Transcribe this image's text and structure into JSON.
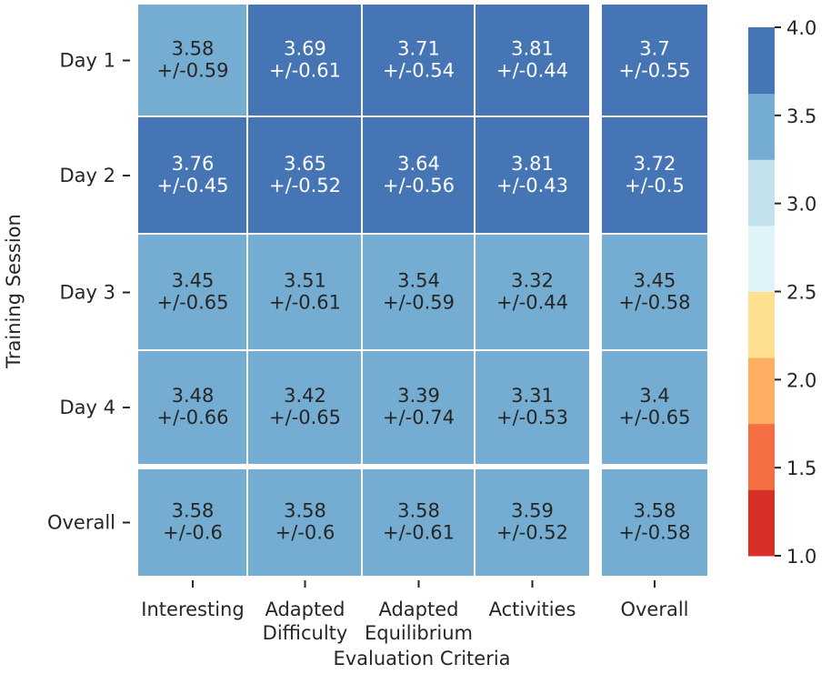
{
  "chart_data": {
    "type": "heatmap",
    "title": "",
    "xlabel": "Evaluation Criteria",
    "ylabel": "Training Session",
    "columns": [
      [
        "Interesting"
      ],
      [
        "Adapted",
        "Difficulty"
      ],
      [
        "Adapted",
        "Equilibrium"
      ],
      [
        "Activities"
      ],
      [
        "Overall"
      ]
    ],
    "rows": [
      "Day 1",
      "Day 2",
      "Day 3",
      "Day 4",
      "Overall"
    ],
    "values": [
      [
        3.58,
        3.69,
        3.71,
        3.81,
        3.7
      ],
      [
        3.76,
        3.65,
        3.64,
        3.81,
        3.72
      ],
      [
        3.45,
        3.51,
        3.54,
        3.32,
        3.45
      ],
      [
        3.48,
        3.42,
        3.39,
        3.31,
        3.4
      ],
      [
        3.58,
        3.58,
        3.58,
        3.59,
        3.58
      ]
    ],
    "value_labels": [
      [
        "3.58",
        "3.69",
        "3.71",
        "3.81",
        "3.7"
      ],
      [
        "3.76",
        "3.65",
        "3.64",
        "3.81",
        "3.72"
      ],
      [
        "3.45",
        "3.51",
        "3.54",
        "3.32",
        "3.45"
      ],
      [
        "3.48",
        "3.42",
        "3.39",
        "3.31",
        "3.4"
      ],
      [
        "3.58",
        "3.58",
        "3.58",
        "3.59",
        "3.58"
      ]
    ],
    "errors": [
      [
        "+/-0.59",
        "+/-0.61",
        "+/-0.54",
        "+/-0.44",
        "+/-0.55"
      ],
      [
        "+/-0.45",
        "+/-0.52",
        "+/-0.56",
        "+/-0.43",
        "+/-0.5"
      ],
      [
        "+/-0.65",
        "+/-0.61",
        "+/-0.59",
        "+/-0.44",
        "+/-0.58"
      ],
      [
        "+/-0.66",
        "+/-0.65",
        "+/-0.74",
        "+/-0.53",
        "+/-0.65"
      ],
      [
        "+/-0.6",
        "+/-0.6",
        "+/-0.61",
        "+/-0.52",
        "+/-0.58"
      ]
    ],
    "colorbar": {
      "min": 1.0,
      "max": 4.0,
      "ticks": [
        "1.0",
        "1.5",
        "2.0",
        "2.5",
        "3.0",
        "3.5",
        "4.0"
      ],
      "bins": [
        {
          "from": 1.0,
          "to": 1.375,
          "color": "#d73027"
        },
        {
          "from": 1.375,
          "to": 1.75,
          "color": "#f46d43"
        },
        {
          "from": 1.75,
          "to": 2.125,
          "color": "#fdae61"
        },
        {
          "from": 2.125,
          "to": 2.5,
          "color": "#fee090"
        },
        {
          "from": 2.5,
          "to": 2.875,
          "color": "#e0f3f8"
        },
        {
          "from": 2.875,
          "to": 3.25,
          "color": "#c2e2ee"
        },
        {
          "from": 3.25,
          "to": 3.625,
          "color": "#74add1"
        },
        {
          "from": 3.625,
          "to": 4.0,
          "color": "#4575b4"
        }
      ]
    },
    "separated_last_row": true,
    "separated_last_column": true
  }
}
